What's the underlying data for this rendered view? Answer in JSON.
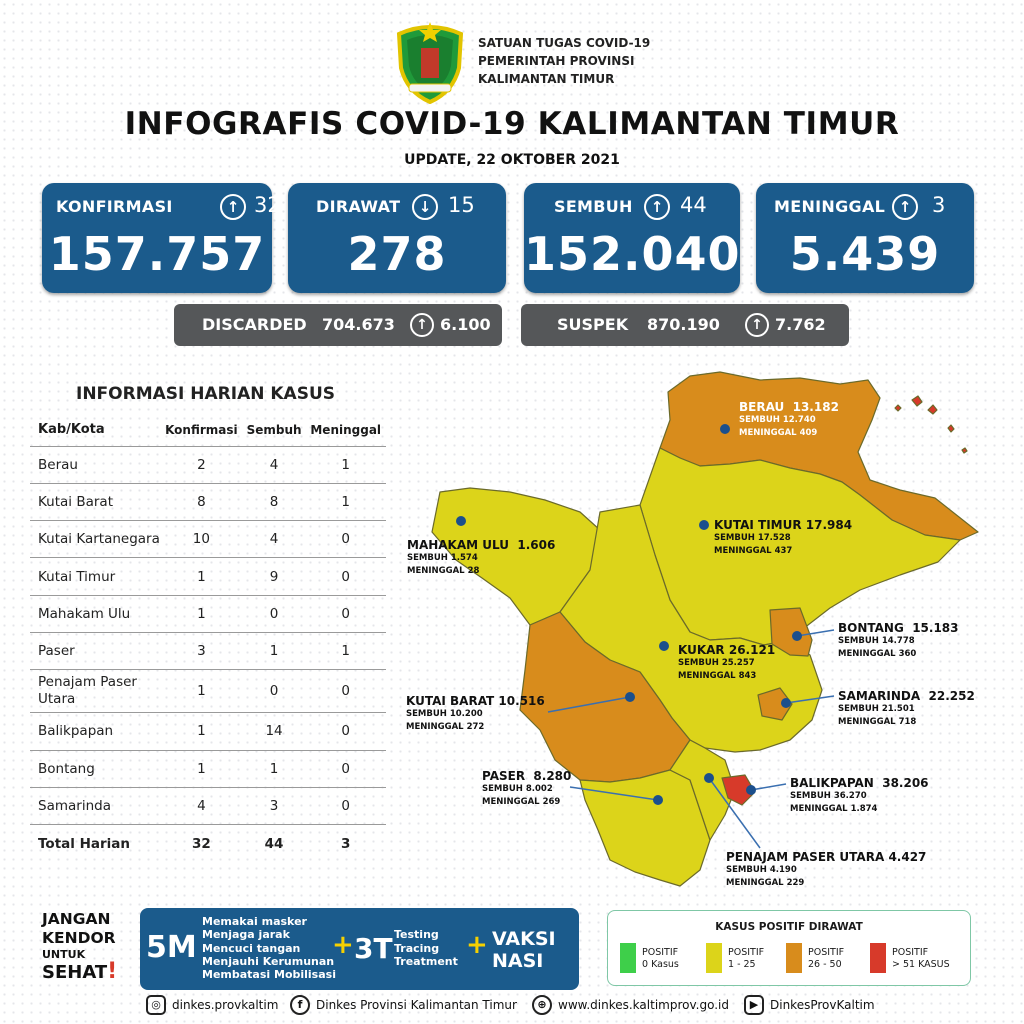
{
  "header": {
    "org_lines": [
      "SATUAN TUGAS COVID-19",
      "PEMERINTAH PROVINSI",
      "KALIMANTAN TIMUR"
    ],
    "title": "INFOGRAFIS COVID-19 KALIMANTAN TIMUR",
    "update": "UPDATE, 22 OKTOBER 2021"
  },
  "stats": [
    {
      "label": "KONFIRMASI",
      "dir": "up",
      "arrow": "↑",
      "delta": "32",
      "value": "157.757"
    },
    {
      "label": "DIRAWAT",
      "dir": "down",
      "arrow": "↓",
      "delta": "15",
      "value": "278"
    },
    {
      "label": "SEMBUH",
      "dir": "up",
      "arrow": "↑",
      "delta": "44",
      "value": "152.040"
    },
    {
      "label": "MENINGGAL",
      "dir": "up",
      "arrow": "↑",
      "delta": "3",
      "value": "5.439"
    }
  ],
  "extra": [
    {
      "label": "DISCARDED",
      "value": "704.673",
      "arrow": "↑",
      "delta": "6.100"
    },
    {
      "label": "SUSPEK",
      "value": "870.190",
      "arrow": "↑",
      "delta": "7.762"
    }
  ],
  "table": {
    "title": "INFORMASI HARIAN KASUS",
    "headers": [
      "Kab/Kota",
      "Konfirmasi",
      "Sembuh",
      "Meninggal"
    ],
    "rows": [
      [
        "Berau",
        "2",
        "4",
        "1"
      ],
      [
        "Kutai Barat",
        "8",
        "8",
        "1"
      ],
      [
        "Kutai Kartanegara",
        "10",
        "4",
        "0"
      ],
      [
        "Kutai Timur",
        "1",
        "9",
        "0"
      ],
      [
        "Mahakam Ulu",
        "1",
        "0",
        "0"
      ],
      [
        "Paser",
        "3",
        "1",
        "1"
      ],
      [
        "Penajam Paser Utara",
        "1",
        "0",
        "0"
      ],
      [
        "Balikpapan",
        "1",
        "14",
        "0"
      ],
      [
        "Bontang",
        "1",
        "1",
        "0"
      ],
      [
        "Samarinda",
        "4",
        "3",
        "0"
      ]
    ],
    "total": [
      "Total Harian",
      "32",
      "44",
      "3"
    ]
  },
  "map": {
    "colors": {
      "green": "#3ecf4a",
      "yellow": "#dcd41a",
      "orange": "#d88c1c",
      "red": "#d73a2a"
    },
    "regions": [
      {
        "name": "BERAU",
        "total": "13.182",
        "sembuh": "SEMBUH 12.740",
        "meninggal": "MENINGGAL 409"
      },
      {
        "name": "MAHAKAM ULU",
        "total": "1.606",
        "sembuh": "SEMBUH 1.574",
        "meninggal": "MENINGGAL 28"
      },
      {
        "name": "KUTAI TIMUR",
        "total": "17.984",
        "sembuh": "SEMBUH 17.528",
        "meninggal": "MENINGGAL 437"
      },
      {
        "name": "BONTANG",
        "total": "15.183",
        "sembuh": "SEMBUH 14.778",
        "meninggal": "MENINGGAL 360"
      },
      {
        "name": "KUKAR",
        "total": "26.121",
        "sembuh": "SEMBUH 25.257",
        "meninggal": "MENINGGAL 843"
      },
      {
        "name": "SAMARINDA",
        "total": "22.252",
        "sembuh": "SEMBUH 21.501",
        "meninggal": "MENINGGAL 718"
      },
      {
        "name": "KUTAI BARAT",
        "total": "10.516",
        "sembuh": "SEMBUH 10.200",
        "meninggal": "MENINGGAL 272"
      },
      {
        "name": "PASER",
        "total": "8.280",
        "sembuh": "SEMBUH 8.002",
        "meninggal": "MENINGGAL 269"
      },
      {
        "name": "BALIKPAPAN",
        "total": "38.206",
        "sembuh": "SEMBUH 36.270",
        "meninggal": "MENINGGAL 1.874"
      },
      {
        "name": "PENAJAM PASER UTARA",
        "total": "4.427",
        "sembuh": "SEMBUH 4.190",
        "meninggal": "MENINGGAL 229"
      }
    ]
  },
  "slogan": {
    "l1": "JANGAN",
    "l2": "KENDOR",
    "l3": "UNTUK",
    "l4": "SEHAT",
    "bang": "!"
  },
  "banner": {
    "m5": "5M",
    "m5_items": [
      "Memakai masker",
      "Menjaga jarak",
      "Mencuci tangan",
      "Menjauhi Kerumunan",
      "Membatasi Mobilisasi"
    ],
    "plus": "+",
    "t3": "3T",
    "t3_items": [
      "Testing",
      "Tracing",
      "Treatment"
    ],
    "vaksi_l1": "VAKSI",
    "vaksi_l2": "NASI"
  },
  "legend": {
    "title": "KASUS POSITIF DIRAWAT",
    "items": [
      {
        "l1": "POSITIF",
        "l2": "0 Kasus",
        "color": "#3ecf4a"
      },
      {
        "l1": "POSITIF",
        "l2": "1 - 25",
        "color": "#dcd41a"
      },
      {
        "l1": "POSITIF",
        "l2": "26 - 50",
        "color": "#d88c1c"
      },
      {
        "l1": "POSITIF",
        "l2": "> 51 KASUS",
        "color": "#d73a2a"
      }
    ]
  },
  "footer": {
    "instagram": "dinkes.provkaltim",
    "facebook": "Dinkes Provinsi Kalimantan Timur",
    "web": "www.dinkes.kaltimprov.go.id",
    "youtube": "DinkesProvKaltim"
  }
}
